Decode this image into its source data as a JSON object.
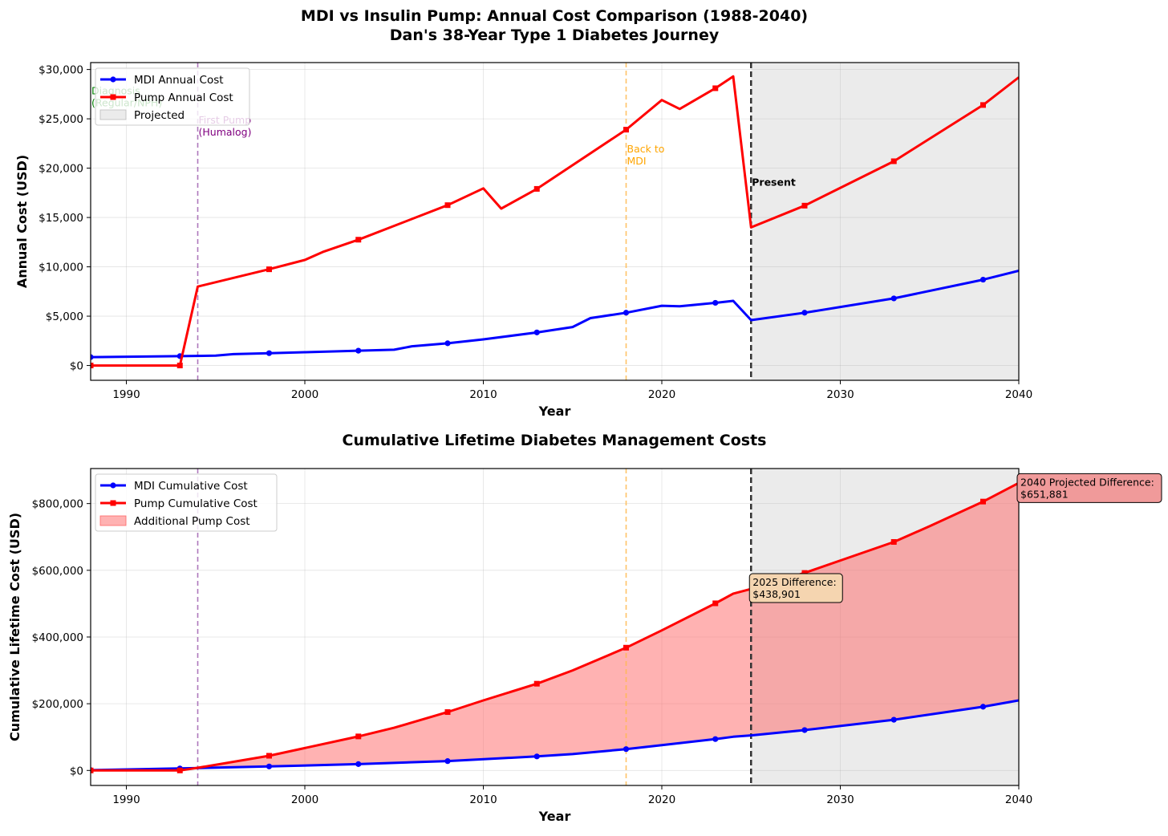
{
  "figure": {
    "title_line1": "MDI vs Insulin Pump: Annual Cost Comparison (1988-2040)",
    "title_line2": "Dan's 38-Year Type 1 Diabetes Journey"
  },
  "colors": {
    "mdi": "#0000ff",
    "pump": "#ff0000",
    "projected_shade": "#ebebeb",
    "fill_additional": "#ffb3b3",
    "fill_projected": "#e8aaaa",
    "first_pump_line": "#a060b0",
    "back_to_mdi_line": "#ffb84d",
    "present_line": "#333333",
    "diagnosis_text": "#008000",
    "first_pump_text": "#800080",
    "back_to_mdi_text": "#ffa500",
    "box_2025": "#f5d5b0",
    "box_2040": "#f09a9a"
  },
  "chart_data": [
    {
      "type": "line",
      "title": "",
      "xlabel": "Year",
      "ylabel": "Annual Cost (USD)",
      "xlim": [
        1988,
        2040
      ],
      "ylim": [
        -1500,
        30700
      ],
      "xticks": [
        1990,
        2000,
        2010,
        2020,
        2030,
        2040
      ],
      "xtick_labels": [
        "1990",
        "2000",
        "2010",
        "2020",
        "2030",
        "2040"
      ],
      "yticks": [
        0,
        5000,
        10000,
        15000,
        20000,
        25000,
        30000
      ],
      "ytick_labels": [
        "$0",
        "$5,000",
        "$10,000",
        "$15,000",
        "$20,000",
        "$25,000",
        "$30,000"
      ],
      "grid": true,
      "legend_position": "upper-left",
      "legend": [
        {
          "label": "MDI Annual Cost",
          "kind": "line",
          "color": "#0000ff",
          "marker": "circle"
        },
        {
          "label": "Pump Annual Cost",
          "kind": "line",
          "color": "#ff0000",
          "marker": "square"
        },
        {
          "label": "Projected",
          "kind": "patch",
          "color": "#ebebeb"
        }
      ],
      "projected_from": 2025,
      "series": [
        {
          "name": "MDI Annual Cost",
          "color": "#0000ff",
          "marker": "circle",
          "x": [
            1988,
            1993,
            1995,
            1996,
            1998,
            2000,
            2003,
            2005,
            2006,
            2008,
            2010,
            2013,
            2015,
            2016,
            2018,
            2020,
            2021,
            2023,
            2024,
            2025,
            2028,
            2033,
            2038,
            2040
          ],
          "y": [
            850,
            950,
            1000,
            1150,
            1250,
            1350,
            1500,
            1600,
            1950,
            2250,
            2650,
            3350,
            3900,
            4800,
            5350,
            6050,
            6000,
            6350,
            6550,
            4600,
            5350,
            6800,
            8700,
            9600
          ],
          "marker_x": [
            1988,
            1993,
            1998,
            2003,
            2008,
            2013,
            2018,
            2023,
            2028,
            2033,
            2038
          ]
        },
        {
          "name": "Pump Annual Cost",
          "color": "#ff0000",
          "marker": "square",
          "x": [
            1988,
            1993,
            1994,
            1998,
            2000,
            2001,
            2003,
            2008,
            2010,
            2011,
            2013,
            2018,
            2020,
            2021,
            2023,
            2024,
            2025,
            2028,
            2033,
            2038,
            2040
          ],
          "y": [
            0,
            0,
            8000,
            9750,
            10700,
            11500,
            12750,
            16250,
            17950,
            15900,
            17900,
            23900,
            26900,
            26000,
            28100,
            29300,
            14000,
            16200,
            20700,
            26400,
            29200
          ],
          "marker_x": [
            1988,
            1993,
            1998,
            2003,
            2008,
            2013,
            2018,
            2023,
            2028,
            2033,
            2038
          ]
        }
      ],
      "vlines": [
        {
          "x": 1994,
          "style": "dashed",
          "color": "#a060b0"
        },
        {
          "x": 2018,
          "style": "dashed",
          "color": "#ffb84d"
        },
        {
          "x": 2025,
          "style": "dashed-bold",
          "color": "#333333"
        }
      ],
      "annotations": [
        {
          "lines": [
            "Diagnosis",
            "(Regular/NPH)"
          ],
          "x": 1988,
          "y": 27500,
          "color": "#008000"
        },
        {
          "lines": [
            "First Pump",
            "(Humalog)"
          ],
          "x": 1994,
          "y": 24500,
          "color": "#800080"
        },
        {
          "lines": [
            "Back to",
            "MDI"
          ],
          "x": 2018,
          "y": 21600,
          "color": "#ffa500"
        },
        {
          "lines": [
            "Present"
          ],
          "x": 2025,
          "y": 18200,
          "color": "#000000",
          "bold": true
        }
      ]
    },
    {
      "type": "area",
      "title": "Cumulative Lifetime Diabetes Management Costs",
      "xlabel": "Year",
      "ylabel": "Cumulative Lifetime Cost (USD)",
      "xlim": [
        1988,
        2040
      ],
      "ylim": [
        -45000,
        905000
      ],
      "xticks": [
        1990,
        2000,
        2010,
        2020,
        2030,
        2040
      ],
      "xtick_labels": [
        "1990",
        "2000",
        "2010",
        "2020",
        "2030",
        "2040"
      ],
      "yticks": [
        0,
        200000,
        400000,
        600000,
        800000
      ],
      "ytick_labels": [
        "$0",
        "$200,000",
        "$400,000",
        "$600,000",
        "$800,000"
      ],
      "grid": true,
      "legend_position": "upper-left",
      "legend": [
        {
          "label": "MDI Cumulative Cost",
          "kind": "line",
          "color": "#0000ff",
          "marker": "circle"
        },
        {
          "label": "Pump Cumulative Cost",
          "kind": "line",
          "color": "#ff0000",
          "marker": "square"
        },
        {
          "label": "Additional Pump Cost",
          "kind": "patch",
          "color": "#ffb3b3"
        }
      ],
      "projected_from": 2025,
      "series": [
        {
          "name": "MDI Cumulative Cost",
          "color": "#0000ff",
          "marker": "circle",
          "x": [
            1988,
            1993,
            1998,
            2003,
            2008,
            2013,
            2015,
            2018,
            2020,
            2023,
            2024,
            2025,
            2028,
            2033,
            2038,
            2040
          ],
          "y": [
            1000,
            6000,
            12000,
            19000,
            28000,
            42000,
            49000,
            64000,
            76000,
            94000,
            101000,
            105000,
            121000,
            152000,
            191000,
            210000
          ],
          "marker_x": [
            1988,
            1993,
            1998,
            2003,
            2008,
            2013,
            2018,
            2023,
            2028,
            2033,
            2038
          ]
        },
        {
          "name": "Pump Cumulative Cost",
          "color": "#ff0000",
          "marker": "square",
          "x": [
            1988,
            1993,
            1994,
            1998,
            2003,
            2005,
            2008,
            2010,
            2013,
            2015,
            2018,
            2020,
            2023,
            2024,
            2025,
            2028,
            2033,
            2035,
            2038,
            2040
          ],
          "y": [
            0,
            0,
            8000,
            44000,
            102000,
            128000,
            175000,
            210000,
            260000,
            300000,
            368000,
            420000,
            501000,
            530000,
            544000,
            592000,
            685000,
            732000,
            806000,
            862000
          ],
          "marker_x": [
            1988,
            1993,
            1998,
            2003,
            2008,
            2013,
            2018,
            2023,
            2028,
            2033,
            2038
          ]
        }
      ],
      "vlines": [
        {
          "x": 1994,
          "style": "dashed",
          "color": "#a060b0"
        },
        {
          "x": 2018,
          "style": "dashed",
          "color": "#ffb84d"
        },
        {
          "x": 2025,
          "style": "dashed-bold",
          "color": "#333333"
        }
      ],
      "annotations": [
        {
          "lines": [
            "2025 Difference:",
            "$438,901"
          ],
          "x": 2025,
          "y": 585000,
          "box_color": "#f5d5b0"
        },
        {
          "lines": [
            "2040 Projected Difference:",
            "$651,881"
          ],
          "x": 2040,
          "y": 885000,
          "box_color": "#f09a9a"
        }
      ]
    }
  ]
}
